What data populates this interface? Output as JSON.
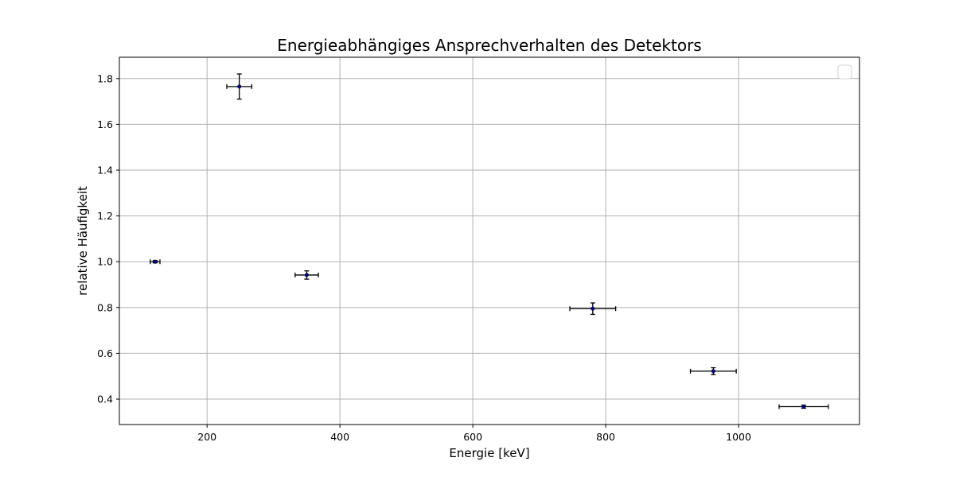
{
  "chart_data": {
    "type": "scatter",
    "title": "Energieabhängiges Ansprechverhalten des Detektors",
    "xlabel": "Energie [keV]",
    "ylabel": "relative Häufigkeit",
    "xlim": [
      68,
      1182
    ],
    "ylim": [
      0.289,
      1.893
    ],
    "xticks": [
      200,
      400,
      600,
      800,
      1000
    ],
    "yticks": [
      0.4,
      0.6,
      0.8,
      1.0,
      1.2,
      1.4,
      1.6,
      1.8
    ],
    "xtick_labels": [
      "200",
      "400",
      "600",
      "800",
      "1000"
    ],
    "ytick_labels": [
      "0.4",
      "0.6",
      "0.8",
      "1.0",
      "1.2",
      "1.4",
      "1.6",
      "1.8"
    ],
    "grid": true,
    "legend": "upper right (empty)",
    "colors": {
      "marker": "#00008b",
      "errorbar": "#000000",
      "grid": "#b0b0b0"
    },
    "points": [
      {
        "x": 121.8,
        "y": 1.0,
        "xerr": 7.3,
        "yerr": 0.005
      },
      {
        "x": 248.5,
        "y": 1.765,
        "xerr": 18.8,
        "yerr": 0.055
      },
      {
        "x": 350.0,
        "y": 0.942,
        "xerr": 17.5,
        "yerr": 0.018
      },
      {
        "x": 780.5,
        "y": 0.795,
        "xerr": 34.5,
        "yerr": 0.025
      },
      {
        "x": 962.0,
        "y": 0.522,
        "xerr": 34.5,
        "yerr": 0.015
      },
      {
        "x": 1098.0,
        "y": 0.367,
        "xerr": 37.0,
        "yerr": 0.007
      }
    ]
  }
}
